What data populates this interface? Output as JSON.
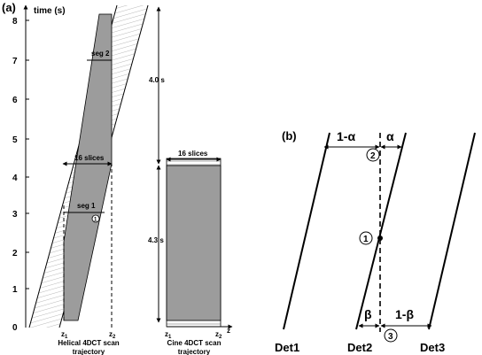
{
  "panel_a": {
    "label": "(a)",
    "y_axis_title": "time (s)",
    "y_ticks": [
      "8",
      "7",
      "6",
      "5",
      "4",
      "3",
      "2",
      "1",
      "0"
    ],
    "helical": {
      "slices_label": "16 slices",
      "seg2_label": "seg 2",
      "seg1_label": "seg 1",
      "marker": "1",
      "z1": "z",
      "z1_sub": "1",
      "z2": "z",
      "z2_sub": "2",
      "caption_line1": "Helical 4DCT scan",
      "caption_line2": "trajectory"
    },
    "duration_top": "4.0 s",
    "duration_bottom": "4.3 s",
    "cine": {
      "slices_label": "16 slices",
      "z1": "z",
      "z1_sub": "1",
      "z2": "z",
      "z2_sub": "2",
      "z_axis": "z",
      "caption_line1": "Cine 4DCT scan",
      "caption_line2": "trajectory"
    }
  },
  "panel_b": {
    "label": "(b)",
    "one_minus_alpha": "1-α",
    "alpha": "α",
    "beta": "β",
    "one_minus_beta": "1-β",
    "circle_2": "2",
    "circle_1": "1",
    "circle_3": "3",
    "det1": "Det1",
    "det2": "Det2",
    "det3": "Det3"
  }
}
